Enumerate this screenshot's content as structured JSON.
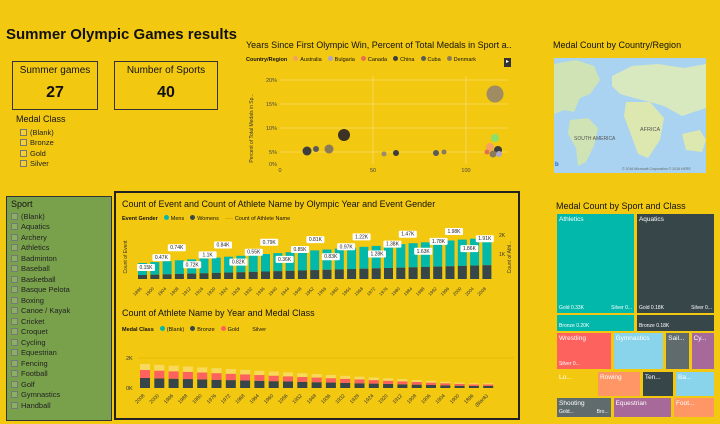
{
  "page": {
    "title": "Summer Olympic Games results"
  },
  "kpis": {
    "summer_games": {
      "label": "Summer games",
      "value": "27"
    },
    "sports": {
      "label": "Number of Sports",
      "value": "40"
    }
  },
  "medal_class_slicer": {
    "title": "Medal Class",
    "items": [
      "(Blank)",
      "Bronze",
      "Gold",
      "Silver"
    ]
  },
  "sport_slicer": {
    "title": "Sport",
    "items": [
      "(Blank)",
      "Aquatics",
      "Archery",
      "Athletics",
      "Badminton",
      "Baseball",
      "Basketball",
      "Basque Pelota",
      "Boxing",
      "Canoe / Kayak",
      "Cricket",
      "Croquet",
      "Cycling",
      "Equestrian",
      "Fencing",
      "Football",
      "Golf",
      "Gymnastics",
      "Handball"
    ]
  },
  "scatter": {
    "title": "Years Since First Olympic Win, Percent of Total Medals in Sport a...",
    "legend_title": "Country/Region",
    "legend": [
      {
        "name": "Australia",
        "color": "#f4a261"
      },
      {
        "name": "Bulgaria",
        "color": "#b0a6c8"
      },
      {
        "name": "Canada",
        "color": "#e76f51"
      },
      {
        "name": "China",
        "color": "#3d3d3d"
      },
      {
        "name": "Cuba",
        "color": "#5a5a5a"
      },
      {
        "name": "Denmark",
        "color": "#8a7a5a"
      }
    ],
    "y_axis_title": "Percent of Total Medals in Sp...",
    "y_ticks": [
      "0%",
      "5%",
      "10%",
      "15%",
      "20%"
    ],
    "x_ticks": [
      "0",
      "50",
      "100"
    ]
  },
  "map": {
    "title": "Medal Count by Country/Region",
    "labels": [
      "AFRICA",
      "SOUTH AMERICA"
    ],
    "copyright": "© 2016 Microsoft Corporation  © 2016 HERE"
  },
  "combo": {
    "title": "Count of Event and Count of Athlete Name by Olympic Year and Event Gender",
    "legend_title": "Event Gender",
    "legend": [
      {
        "name": "Mens",
        "color": "#01b8aa"
      },
      {
        "name": "Womens",
        "color": "#374649"
      }
    ],
    "line_legend": "Count of Athlete Name",
    "y_left": "Count of Event",
    "y_right": "Count of Athl...",
    "y_right_ticks": [
      "2K",
      "1K"
    ],
    "data_labels": [
      "0.15K",
      "0.47K",
      "0.74K",
      "0.72K",
      "1.1K",
      "0.84K",
      "0.82K",
      "0.55K",
      "0.79K",
      "0.36K",
      "0.85K",
      "0.81K",
      "0.83K",
      "0.97K",
      "1.22K",
      "1.28K",
      "1.38K",
      "1.47K",
      "1.63K",
      "1.78K",
      "1.98K",
      "1.86K",
      "1.91K"
    ]
  },
  "stacked": {
    "title": "Count of Athlete Name by Year and Medal Class",
    "legend_title": "Medal Class",
    "legend": [
      {
        "name": "(Blank)",
        "color": "#01b8aa"
      },
      {
        "name": "Bronze",
        "color": "#374649"
      },
      {
        "name": "Gold",
        "color": "#fd625e"
      },
      {
        "name": "Silver",
        "color": "#f2c811"
      }
    ],
    "y_ticks": [
      "2K",
      "0K"
    ],
    "years": [
      "2008",
      "2000",
      "1996",
      "1988",
      "1980",
      "1976",
      "1972",
      "1968",
      "1964",
      "1960",
      "1956",
      "1952",
      "1948",
      "1936",
      "1932",
      "1928",
      "1924",
      "1920",
      "1912",
      "1908",
      "1906",
      "1904",
      "1900",
      "1896",
      "(Blank)"
    ]
  },
  "treemap": {
    "title": "Medal Count by Sport and Class",
    "tiles": [
      {
        "label": "Athletics",
        "sub": "Gold 0.33K",
        "sub2": "Silver 0...",
        "color": "#01b8aa"
      },
      {
        "label": "Aquatics",
        "sub": "Gold 0.18K",
        "sub2": "Silver 0...",
        "color": "#374649"
      },
      {
        "label": "",
        "sub": "Bronze 0.20K",
        "color": "#01b8aa"
      },
      {
        "label": "",
        "sub": "Bronze 0.18K",
        "color": "#374649"
      },
      {
        "label": "Wrestling",
        "sub": "Silver 0...",
        "color": "#fd625e"
      },
      {
        "label": "Gymnastics",
        "sub": "",
        "color": "#8ad4eb"
      },
      {
        "label": "Sail...",
        "sub": "",
        "color": "#5f6b6d"
      },
      {
        "label": "Cy...",
        "sub": "",
        "color": "#a66999"
      },
      {
        "label": "Lo...",
        "sub": "",
        "color": "#f2c811"
      },
      {
        "label": "Rowing",
        "sub": "",
        "color": "#fe9666"
      },
      {
        "label": "Ten...",
        "sub": "",
        "color": "#374649"
      },
      {
        "label": "Ba...",
        "sub": "",
        "color": "#8ad4eb"
      },
      {
        "label": "Shooting",
        "sub": "Gold...",
        "sub2": "Bro...",
        "color": "#5f6b6d"
      },
      {
        "label": "Equestrian",
        "sub": "",
        "color": "#a66999"
      },
      {
        "label": "Foot...",
        "sub": "",
        "color": "#fe9666"
      }
    ]
  }
}
